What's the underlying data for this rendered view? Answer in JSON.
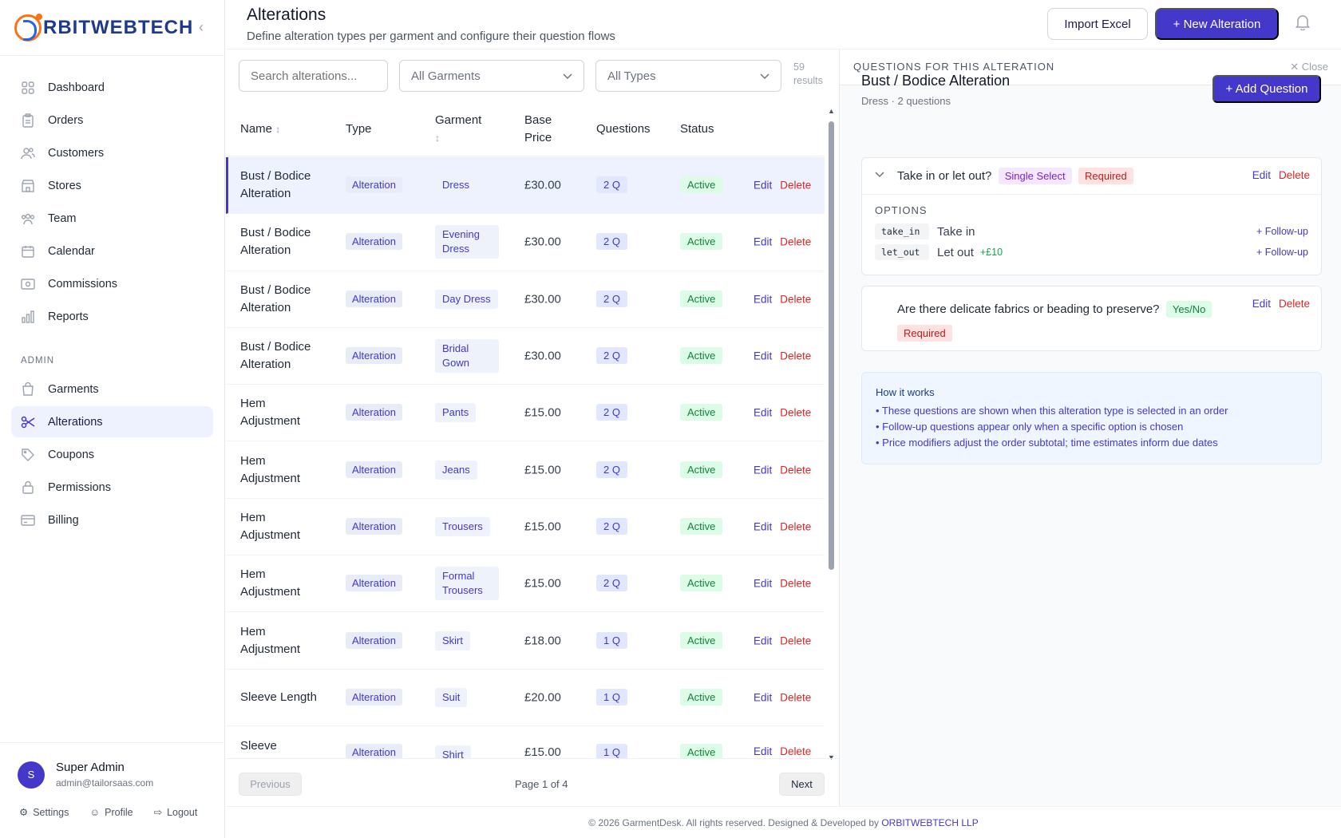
{
  "brand": {
    "name": "RBITWEBTECH"
  },
  "sidebar": {
    "items": [
      {
        "label": "Dashboard",
        "icon": "grid-icon"
      },
      {
        "label": "Orders",
        "icon": "clipboard-icon"
      },
      {
        "label": "Customers",
        "icon": "users-icon"
      },
      {
        "label": "Stores",
        "icon": "store-icon"
      },
      {
        "label": "Team",
        "icon": "team-icon"
      },
      {
        "label": "Calendar",
        "icon": "calendar-icon"
      },
      {
        "label": "Commissions",
        "icon": "cash-icon"
      },
      {
        "label": "Reports",
        "icon": "chart-icon"
      }
    ],
    "admin_label": "ADMIN",
    "admin_items": [
      {
        "label": "Garments",
        "icon": "bag-icon"
      },
      {
        "label": "Alterations",
        "icon": "scissors-icon",
        "active": true
      },
      {
        "label": "Coupons",
        "icon": "tag-icon"
      },
      {
        "label": "Permissions",
        "icon": "lock-icon"
      },
      {
        "label": "Billing",
        "icon": "card-icon"
      }
    ],
    "user": {
      "initial": "S",
      "name": "Super Admin",
      "email": "admin@tailorsaas.com"
    },
    "footer": {
      "settings": "Settings",
      "profile": "Profile",
      "logout": "Logout"
    }
  },
  "header": {
    "title": "Alterations",
    "subtitle": "Define alteration types per garment and configure their question flows",
    "import_label": "Import Excel",
    "new_label": "+ New Alteration"
  },
  "filters": {
    "search_placeholder": "Search alterations...",
    "garments": "All Garments",
    "types": "All Types",
    "results_count": "59",
    "results_label": "results"
  },
  "table": {
    "headers": {
      "name": "Name",
      "type": "Type",
      "garment": "Garment",
      "base_price_1": "Base",
      "base_price_2": "Price",
      "questions": "Questions",
      "status": "Status"
    },
    "edit_label": "Edit",
    "delete_label": "Delete",
    "rows": [
      {
        "name": "Bust / Bodice Alteration",
        "type": "Alteration",
        "garment": "Dress",
        "price": "£30.00",
        "questions": "2 Q",
        "status": "Active"
      },
      {
        "name": "Bust / Bodice Alteration",
        "type": "Alteration",
        "garment": "Evening Dress",
        "price": "£30.00",
        "questions": "2 Q",
        "status": "Active"
      },
      {
        "name": "Bust / Bodice Alteration",
        "type": "Alteration",
        "garment": "Day Dress",
        "price": "£30.00",
        "questions": "2 Q",
        "status": "Active"
      },
      {
        "name": "Bust / Bodice Alteration",
        "type": "Alteration",
        "garment": "Bridal Gown",
        "price": "£30.00",
        "questions": "2 Q",
        "status": "Active"
      },
      {
        "name": "Hem Adjustment",
        "type": "Alteration",
        "garment": "Pants",
        "price": "£15.00",
        "questions": "2 Q",
        "status": "Active"
      },
      {
        "name": "Hem Adjustment",
        "type": "Alteration",
        "garment": "Jeans",
        "price": "£15.00",
        "questions": "2 Q",
        "status": "Active"
      },
      {
        "name": "Hem Adjustment",
        "type": "Alteration",
        "garment": "Trousers",
        "price": "£15.00",
        "questions": "2 Q",
        "status": "Active"
      },
      {
        "name": "Hem Adjustment",
        "type": "Alteration",
        "garment": "Formal Trousers",
        "price": "£15.00",
        "questions": "2 Q",
        "status": "Active"
      },
      {
        "name": "Hem Adjustment",
        "type": "Alteration",
        "garment": "Skirt",
        "price": "£18.00",
        "questions": "1 Q",
        "status": "Active"
      },
      {
        "name": "Sleeve Length",
        "type": "Alteration",
        "garment": "Suit",
        "price": "£20.00",
        "questions": "1 Q",
        "status": "Active"
      },
      {
        "name": "Sleeve",
        "type": "Alteration",
        "garment": "Shirt",
        "price": "£15.00",
        "questions": "1 Q",
        "status": "Active"
      }
    ]
  },
  "pagination": {
    "prev": "Previous",
    "info": "Page 1 of 4",
    "next": "Next"
  },
  "panel": {
    "title": "QUESTIONS FOR THIS ALTERATION",
    "close": "Close",
    "alteration_name": "Bust / Bodice Alteration",
    "alteration_sub": "Dress · 2 questions",
    "add_question": "+ Add Question",
    "options_label": "OPTIONS",
    "q1": {
      "text": "Take in or let out?",
      "type": "Single Select",
      "required": "Required",
      "options": [
        {
          "key": "take_in",
          "label": "Take in",
          "modifier": ""
        },
        {
          "key": "let_out",
          "label": "Let out",
          "modifier": "+£10"
        }
      ],
      "follow_up": "+ Follow-up"
    },
    "q2": {
      "text": "Are there delicate fabrics or beading to preserve?",
      "type": "Yes/No",
      "required": "Required"
    },
    "how": {
      "title": "How it works",
      "items": [
        "• These questions are shown when this alteration type is selected in an order",
        "• Follow-up questions appear only when a specific option is chosen",
        "• Price modifiers adjust the order subtotal; time estimates inform due dates"
      ]
    }
  },
  "footer": {
    "text": "© 2026 GarmentDesk. All rights reserved. Designed & Developed by",
    "company": "ORBITWEBTECH LLP"
  },
  "colors": {
    "accent": "#4338ca",
    "danger": "#dc2626",
    "success": "#15803d",
    "brand_orange": "#f97316"
  }
}
